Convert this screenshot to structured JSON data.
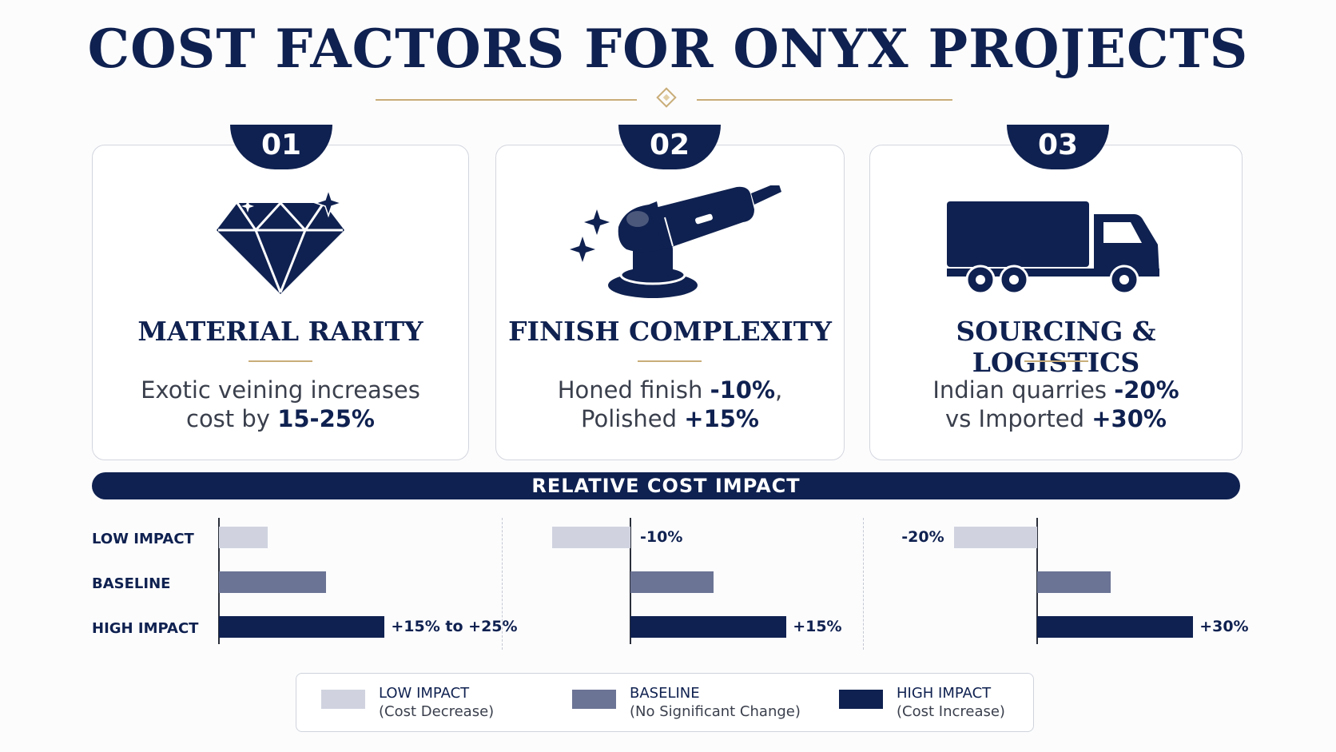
{
  "title": "COST FACTORS FOR ONYX PROJECTS",
  "colors": {
    "navy": "#0f2150",
    "gold": "#c9ad78",
    "low": "#d0d3df",
    "baseline": "#6b7494",
    "high": "#0f2150"
  },
  "cards": [
    {
      "number": "01",
      "icon": "diamond-icon",
      "title": "MATERIAL RARITY",
      "desc_line1": "Exotic veining increases",
      "desc_line2_pre": "cost by ",
      "desc_line2_bold": "15-25%"
    },
    {
      "number": "02",
      "icon": "angle-grinder-icon",
      "title": "FINISH COMPLEXITY",
      "desc_line1_pre": "Honed finish ",
      "desc_line1_bold": "-10%",
      "desc_line1_post": ",",
      "desc_line2_pre": "Polished ",
      "desc_line2_bold": "+15%"
    },
    {
      "number": "03",
      "icon": "truck-icon",
      "title": "SOURCING & LOGISTICS",
      "desc_line1_pre": "Indian quarries ",
      "desc_line1_bold": "-20%",
      "desc_line2_pre": "vs Imported ",
      "desc_line2_bold": "+30%"
    }
  ],
  "impact": {
    "banner": "RELATIVE COST IMPACT",
    "row_labels": [
      "LOW IMPACT",
      "BASELINE",
      "HIGH IMPACT"
    ]
  },
  "chart_data": [
    {
      "type": "bar",
      "title": "",
      "categories": [
        "LOW IMPACT",
        "BASELINE",
        "HIGH IMPACT"
      ],
      "values": [
        1,
        2.2,
        3.4
      ],
      "value_labels": [
        "",
        "",
        "+15% to +25%"
      ]
    },
    {
      "type": "bar",
      "title": "",
      "categories": [
        "LOW IMPACT",
        "BASELINE",
        "HIGH IMPACT"
      ],
      "values": [
        -1.6,
        1.7,
        3.2
      ],
      "value_labels": [
        "-10%",
        "",
        "+15%"
      ]
    },
    {
      "type": "bar",
      "title": "",
      "categories": [
        "LOW IMPACT",
        "BASELINE",
        "HIGH IMPACT"
      ],
      "values": [
        -1.7,
        1.5,
        3.2
      ],
      "value_labels": [
        "-20%",
        "",
        "+30%"
      ]
    }
  ],
  "legend": [
    {
      "label": "LOW IMPACT",
      "sub": "(Cost Decrease)"
    },
    {
      "label": "BASELINE",
      "sub": "(No Significant Change)"
    },
    {
      "label": "HIGH IMPACT",
      "sub": "(Cost Increase)"
    }
  ]
}
